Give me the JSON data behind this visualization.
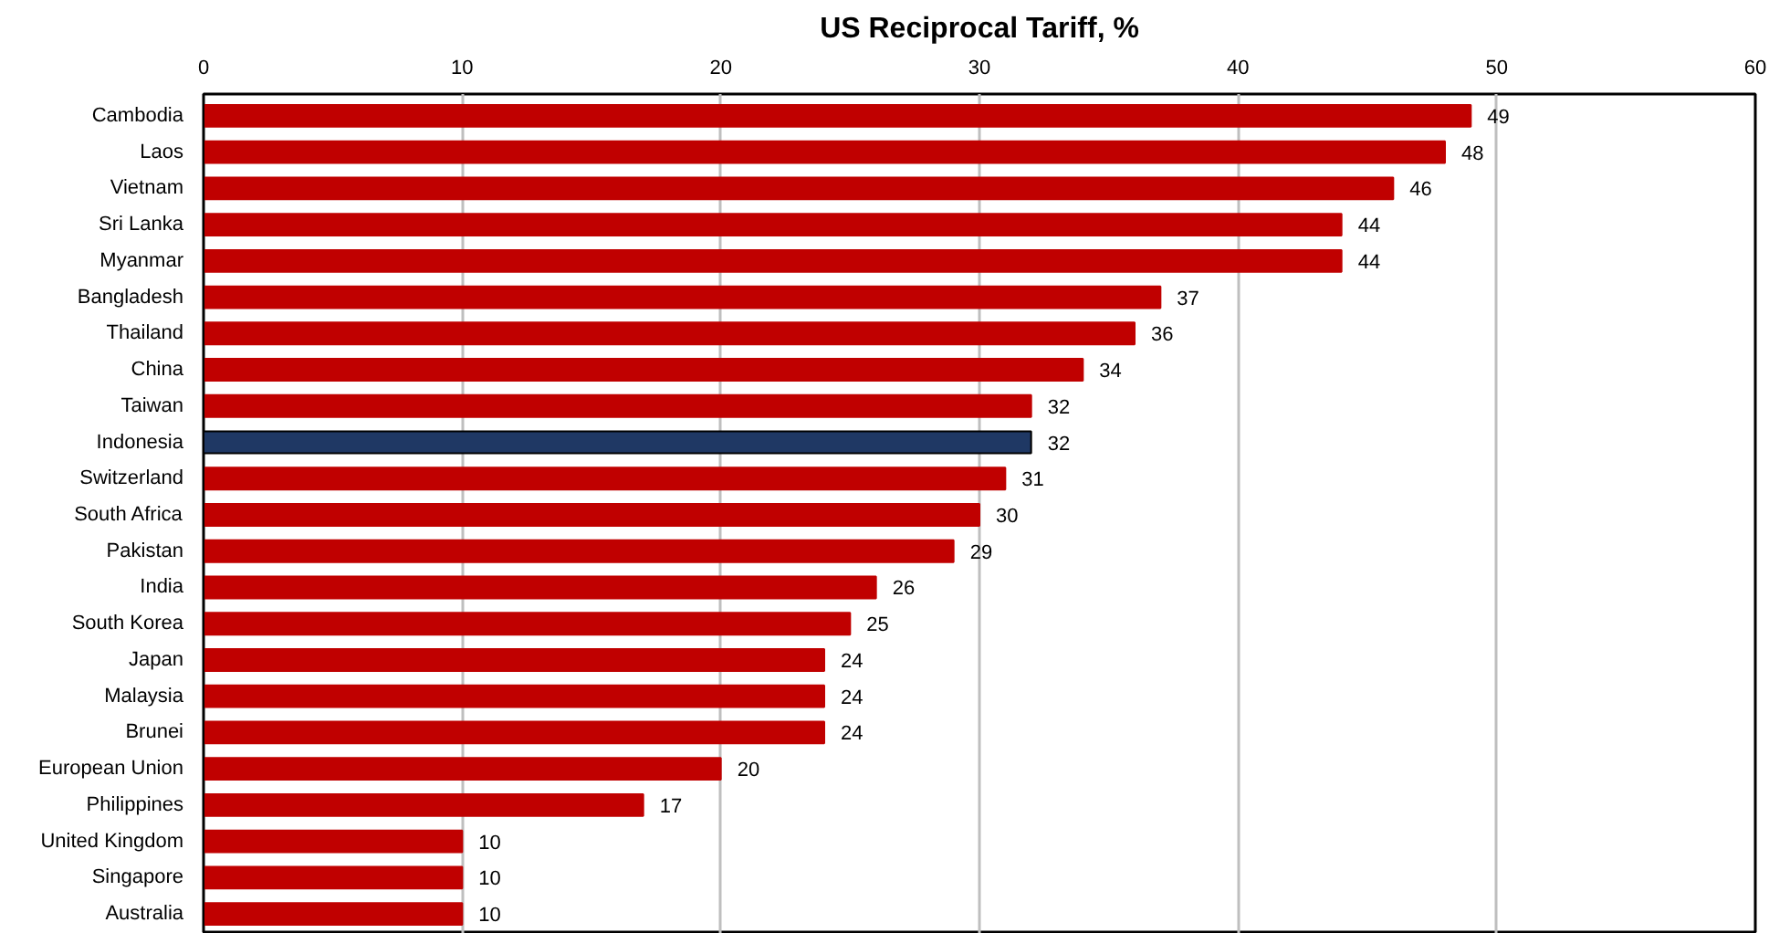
{
  "chart_data": {
    "type": "bar",
    "orientation": "horizontal",
    "title": "US Reciprocal Tariff, %",
    "categories": [
      "Cambodia",
      "Laos",
      "Vietnam",
      "Sri Lanka",
      "Myanmar",
      "Bangladesh",
      "Thailand",
      "China",
      "Taiwan",
      "Indonesia",
      "Switzerland",
      "South Africa",
      "Pakistan",
      "India",
      "South Korea",
      "Japan",
      "Malaysia",
      "Brunei",
      "European Union",
      "Philippines",
      "United Kingdom",
      "Singapore",
      "Australia"
    ],
    "values": [
      49,
      48,
      46,
      44,
      44,
      37,
      36,
      34,
      32,
      32,
      31,
      30,
      29,
      26,
      25,
      24,
      24,
      24,
      20,
      17,
      10,
      10,
      10
    ],
    "colors": [
      "#c00000",
      "#c00000",
      "#c00000",
      "#c00000",
      "#c00000",
      "#c00000",
      "#c00000",
      "#c00000",
      "#c00000",
      "#1f3864",
      "#c00000",
      "#c00000",
      "#c00000",
      "#c00000",
      "#c00000",
      "#c00000",
      "#c00000",
      "#c00000",
      "#c00000",
      "#c00000",
      "#c00000",
      "#c00000",
      "#c00000"
    ],
    "xlim": [
      0,
      60
    ],
    "xticks": [
      0,
      10,
      20,
      30,
      40,
      50,
      60
    ],
    "grid": "x",
    "data_labels": true
  }
}
